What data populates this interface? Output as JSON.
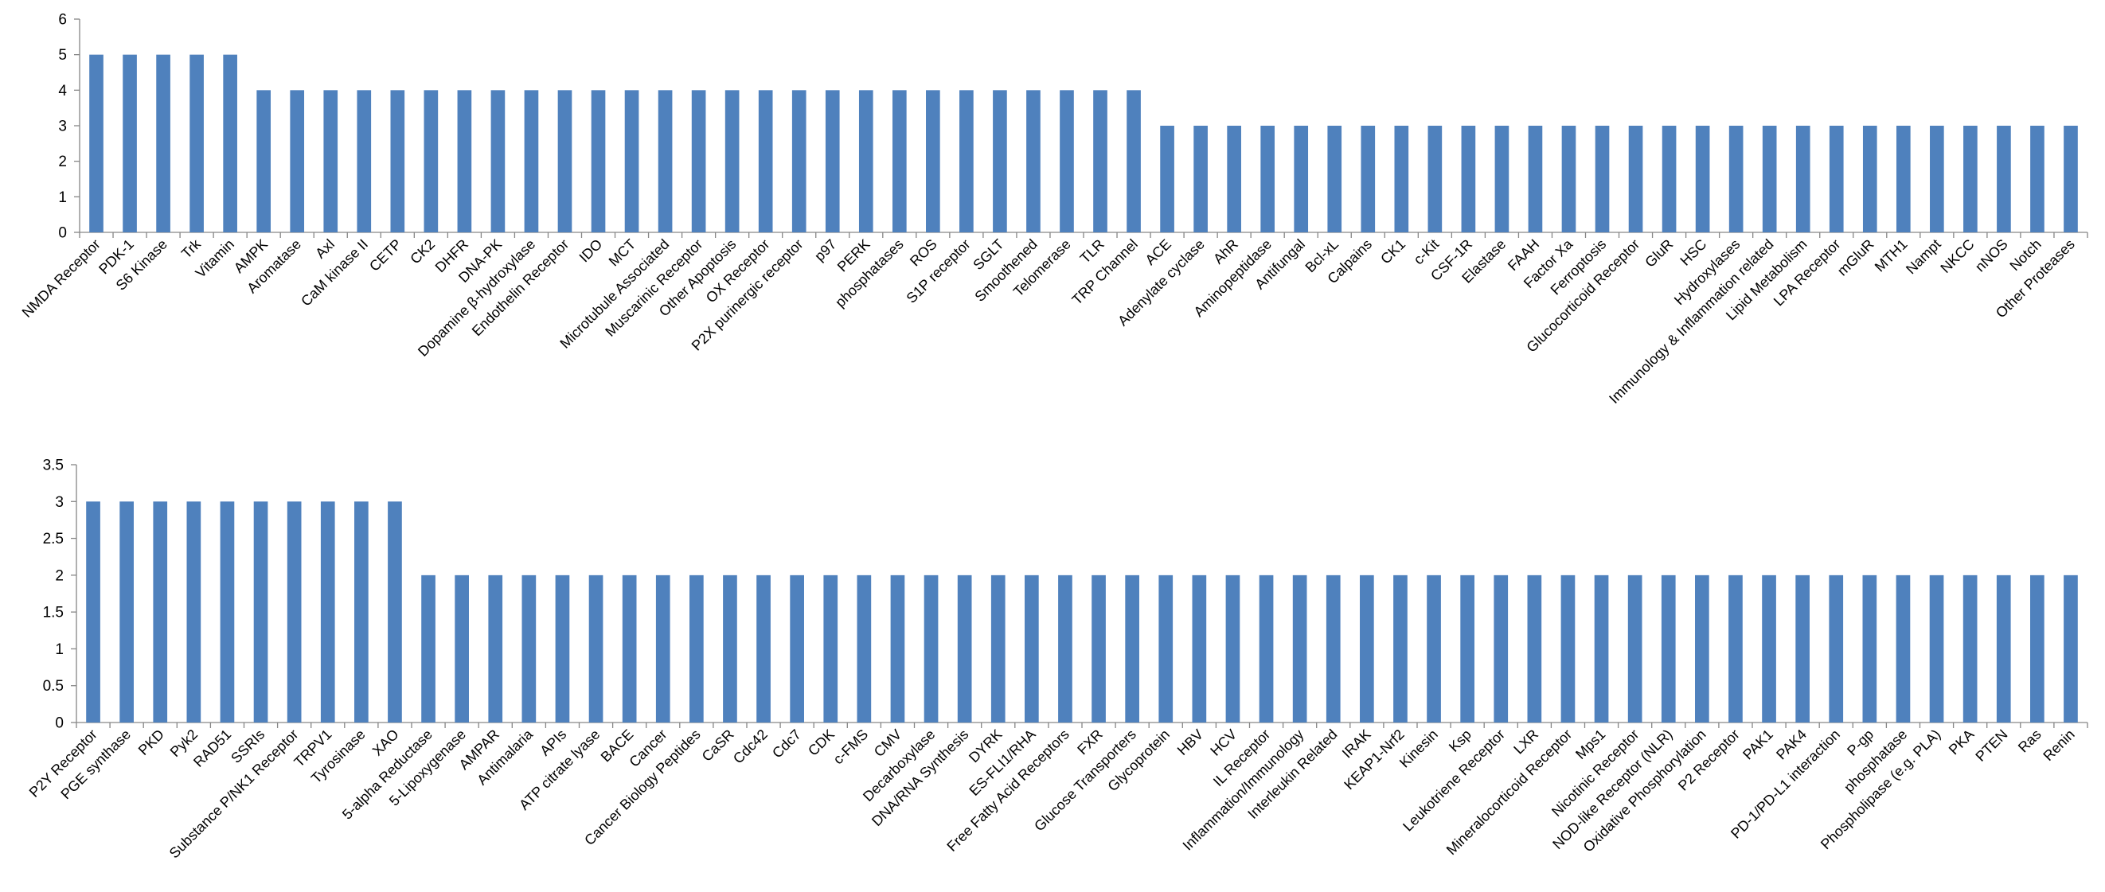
{
  "chart_data": [
    {
      "type": "bar",
      "title": "",
      "xlabel": "",
      "ylabel": "",
      "ylim": [
        0,
        6
      ],
      "yticks": [
        "0",
        "1",
        "2",
        "3",
        "4",
        "5",
        "6"
      ],
      "grid": false,
      "legend": "none",
      "bar_color": "#4F81BD",
      "categories": [
        "NMDA Receptor",
        "PDK-1",
        "S6 Kinase",
        "Trk",
        "Vitamin",
        "AMPK",
        "Aromatase",
        "Axl",
        "CaM kinase II",
        "CETP",
        "CK2",
        "DHFR",
        "DNA-PK",
        "Dopamine β-hydroxylase",
        "Endothelin Receptor",
        "IDO",
        "MCT",
        "Microtubule Associated",
        "Muscarinic Receptor",
        "Other Apoptosis",
        "OX Receptor",
        "P2X purinergic receptor",
        "p97",
        "PERK",
        "phosphatases",
        "ROS",
        "S1P receptor",
        "SGLT",
        "Smoothened",
        "Telomerase",
        "TLR",
        "TRP Channel",
        "ACE",
        "Adenylate cyclase",
        "AhR",
        "Aminopeptidase",
        "Antifungal",
        "Bcl-xL",
        "Calpains",
        "CK1",
        "c-Kit",
        "CSF-1R",
        "Elastase",
        "FAAH",
        "Factor Xa",
        "Ferroptosis",
        "Glucocorticoid Receptor",
        "GluR",
        "HSC",
        "Hydroxylases",
        "Immunology & Inflammation related",
        "Lipid Metabolism",
        "LPA Receptor",
        "mGluR",
        "MTH1",
        "Nampt",
        "NKCC",
        "nNOS",
        "Notch",
        "Other Proteases"
      ],
      "values": [
        5,
        5,
        5,
        5,
        5,
        4,
        4,
        4,
        4,
        4,
        4,
        4,
        4,
        4,
        4,
        4,
        4,
        4,
        4,
        4,
        4,
        4,
        4,
        4,
        4,
        4,
        4,
        4,
        4,
        4,
        4,
        4,
        3,
        3,
        3,
        3,
        3,
        3,
        3,
        3,
        3,
        3,
        3,
        3,
        3,
        3,
        3,
        3,
        3,
        3,
        3,
        3,
        3,
        3,
        3,
        3,
        3,
        3,
        3,
        3
      ]
    },
    {
      "type": "bar",
      "title": "",
      "xlabel": "",
      "ylabel": "",
      "ylim": [
        0,
        3.5
      ],
      "yticks": [
        "0",
        "0.5",
        "1",
        "1.5",
        "2",
        "2.5",
        "3",
        "3.5"
      ],
      "grid": false,
      "legend": "none",
      "bar_color": "#4F81BD",
      "categories": [
        "P2Y Receptor",
        "PGE synthase",
        "PKD",
        "Pyk2",
        "RAD51",
        "SSRIs",
        "Substance P/NK1 Receptor",
        "TRPV1",
        "Tyrosinase",
        "XAO",
        "5-alpha Reductase",
        "5-Lipoxygenase",
        "AMPAR",
        "Antimalaria",
        "APIs",
        "ATP citrate lyase",
        "BACE",
        "Cancer",
        "Cancer Biology Peptides",
        "CaSR",
        "Cdc42",
        "Cdc7",
        "CDK",
        "c-FMS",
        "CMV",
        "Decarboxylase",
        "DNA/RNA Synthesis",
        "DYRK",
        "ES-FLI1/RHA",
        "Free Fatty Acid Receptors",
        "FXR",
        "Glucose Transporters",
        "Glycoprotein",
        "HBV",
        "HCV",
        "IL Receptor",
        "Inflammation/Immunology",
        "Interleukin Related",
        "IRAK",
        "KEAP1-Nrf2",
        "Kinesin",
        "Ksp",
        "Leukotriene Receptor",
        "LXR",
        "Mineralocorticoid Receptor",
        "Mps1",
        "Nicotinic Receptor",
        "NOD-like Receptor (NLR)",
        "Oxidative Phosphorylation",
        "P2 Receptor",
        "PAK1",
        "PAK4",
        "PD-1/PD-L1 interaction",
        "P-gp",
        "phosphatase",
        "Phospholipase (e.g. PLA)",
        "PKA",
        "PTEN",
        "Ras",
        "Renin"
      ],
      "values": [
        3,
        3,
        3,
        3,
        3,
        3,
        3,
        3,
        3,
        3,
        2,
        2,
        2,
        2,
        2,
        2,
        2,
        2,
        2,
        2,
        2,
        2,
        2,
        2,
        2,
        2,
        2,
        2,
        2,
        2,
        2,
        2,
        2,
        2,
        2,
        2,
        2,
        2,
        2,
        2,
        2,
        2,
        2,
        2,
        2,
        2,
        2,
        2,
        2,
        2,
        2,
        2,
        2,
        2,
        2,
        2,
        2,
        2,
        2,
        2
      ]
    }
  ]
}
